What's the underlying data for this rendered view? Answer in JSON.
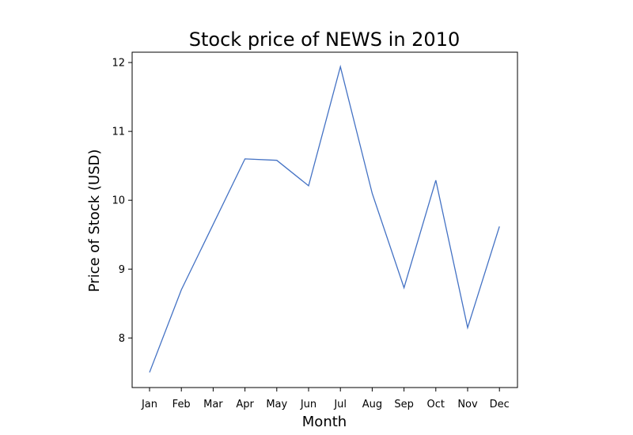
{
  "chart_data": {
    "type": "line",
    "title": "Stock price of NEWS in 2010",
    "xlabel": "Month",
    "ylabel": "Price of Stock (USD)",
    "categories": [
      "Jan",
      "Feb",
      "Mar",
      "Apr",
      "May",
      "Jun",
      "Jul",
      "Aug",
      "Sep",
      "Oct",
      "Nov",
      "Dec"
    ],
    "series": [
      {
        "values": [
          7.5,
          8.7,
          9.65,
          10.6,
          10.58,
          10.21,
          11.94,
          10.1,
          8.73,
          10.29,
          8.15,
          9.62
        ],
        "color": "#4472c4"
      }
    ],
    "yticks": [
      8,
      9,
      10,
      11,
      12
    ],
    "ylim": [
      7.28,
      12.15
    ],
    "grid": false,
    "legend": "none"
  }
}
